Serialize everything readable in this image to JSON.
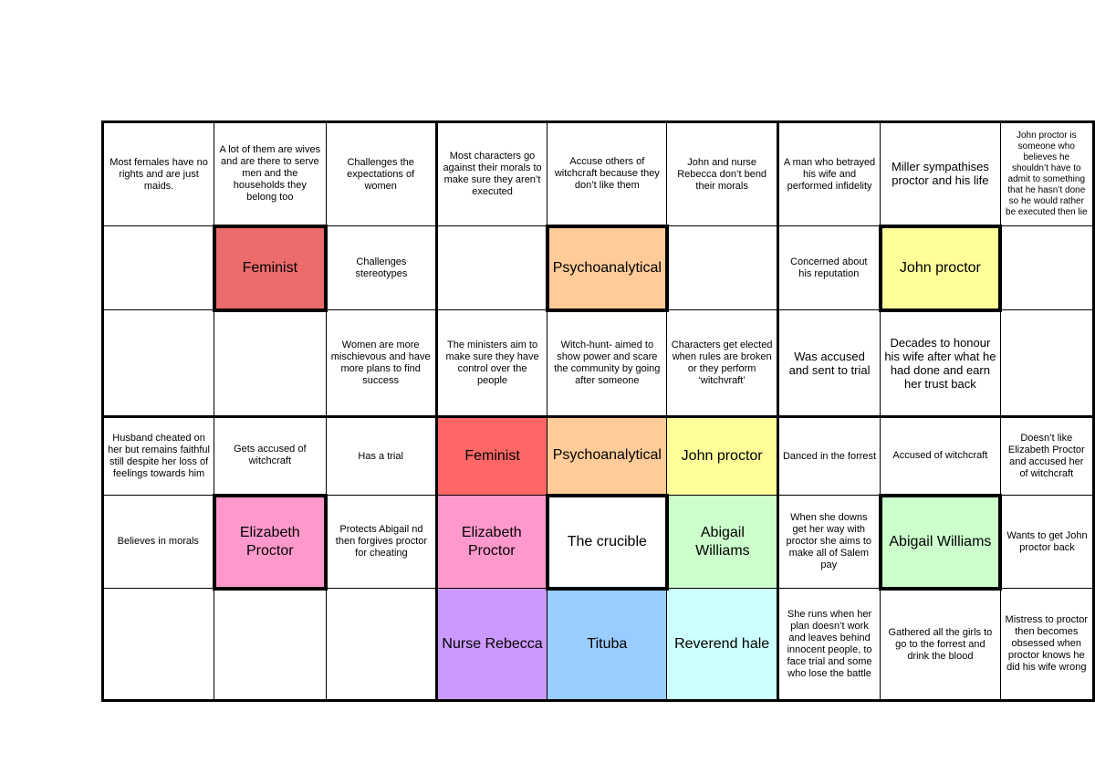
{
  "colors": {
    "feminist": "#ec6b6b",
    "feminist_center": "#ff6666",
    "psychoanalytical": "#ffcc99",
    "john_proctor": "#ffff99",
    "elizabeth_proctor": "#ff99cc",
    "abigail_williams": "#ccffcc",
    "nurse_rebecca": "#cc99ff",
    "tituba": "#99ccff",
    "reverend_hale": "#ccffff",
    "the_crucible": "#ffffff"
  },
  "grid": [
    [
      {
        "text": "Most females have no rights and are just maids."
      },
      {
        "text": "A lot of them are wives and are there to serve men and the households they belong too"
      },
      {
        "text": "Challenges the expectations of women"
      },
      {
        "text": "Most characters go against their morals to make sure they aren’t executed"
      },
      {
        "text": "Accuse others of witchcraft because they don’t like them"
      },
      {
        "text": "John and nurse Rebecca don’t bend their morals"
      },
      {
        "text": "A man who betrayed his wife and performed infidelity"
      },
      {
        "text": "Miller sympathises proctor and his life",
        "size": "mid"
      },
      {
        "text": "John proctor is someone who believes he shouldn’t have to admit to something that he hasn’t done so he would rather be executed then lie",
        "size": "sm"
      }
    ],
    [
      {
        "text": ""
      },
      {
        "text": "Feminist",
        "size": "big",
        "color": "#ec6b6b",
        "thick": true
      },
      {
        "text": "Challenges stereotypes"
      },
      {
        "text": ""
      },
      {
        "text": "Psychoanalytical",
        "size": "big",
        "color": "#ffcc99",
        "thick": true
      },
      {
        "text": ""
      },
      {
        "text": "Concerned about his reputation"
      },
      {
        "text": "John proctor",
        "size": "big",
        "color": "#ffff99",
        "thick": true
      },
      {
        "text": ""
      }
    ],
    [
      {
        "text": ""
      },
      {
        "text": ""
      },
      {
        "text": "Women are more mischievous and have more plans to find success"
      },
      {
        "text": "The ministers aim to make sure they have control over the people"
      },
      {
        "text": "Witch-hunt- aimed to show power and scare the community by going after someone"
      },
      {
        "text": "Characters get elected when rules are broken or they perform ‘witchvraft’"
      },
      {
        "text": "Was accused and sent to trial",
        "size": "mid"
      },
      {
        "text": "Decades to honour his wife after what he had done and earn her trust back",
        "size": "mid"
      },
      {
        "text": ""
      }
    ],
    [
      {
        "text": "Husband cheated on her but remains faithful still despite her loss of feelings towards him"
      },
      {
        "text": "Gets accused of witchcraft"
      },
      {
        "text": "Has a trial"
      },
      {
        "text": "Feminist",
        "size": "big",
        "color": "#ff6666"
      },
      {
        "text": "Psychoanalytical",
        "size": "big",
        "color": "#ffcc99"
      },
      {
        "text": "John proctor",
        "size": "big",
        "color": "#ffff99"
      },
      {
        "text": "Danced in the forrest"
      },
      {
        "text": "Accused of witchcraft"
      },
      {
        "text": "Doesn’t like Elizabeth Proctor and accused her of witchcraft"
      }
    ],
    [
      {
        "text": "Believes in morals"
      },
      {
        "text": "Elizabeth Proctor",
        "size": "big",
        "color": "#ff99cc",
        "thick": true
      },
      {
        "text": "Protects Abigail nd then forgives proctor for cheating"
      },
      {
        "text": "Elizabeth Proctor",
        "size": "big",
        "color": "#ff99cc"
      },
      {
        "text": "The crucible",
        "size": "big",
        "color": "#ffffff",
        "thick": true
      },
      {
        "text": "Abigail Williams",
        "size": "big",
        "color": "#ccffcc"
      },
      {
        "text": "When she downs get her way with proctor she aims to make all of Salem pay"
      },
      {
        "text": "Abigail Williams",
        "size": "big",
        "color": "#ccffcc",
        "thick": true
      },
      {
        "text": "Wants to get John proctor back"
      }
    ],
    [
      {
        "text": ""
      },
      {
        "text": ""
      },
      {
        "text": ""
      },
      {
        "text": "Nurse Rebecca",
        "size": "big",
        "color": "#cc99ff"
      },
      {
        "text": "Tituba",
        "size": "big",
        "color": "#99ccff"
      },
      {
        "text": "Reverend hale",
        "size": "big",
        "color": "#ccffff"
      },
      {
        "text": "She runs when her plan doesn’t work and leaves behind innocent people, to face trial and some who lose the battle"
      },
      {
        "text": "Gathered all the girls to go to the forrest and drink the blood"
      },
      {
        "text": "Mistress to proctor then becomes obsessed when proctor knows he did his wife wrong"
      }
    ]
  ]
}
